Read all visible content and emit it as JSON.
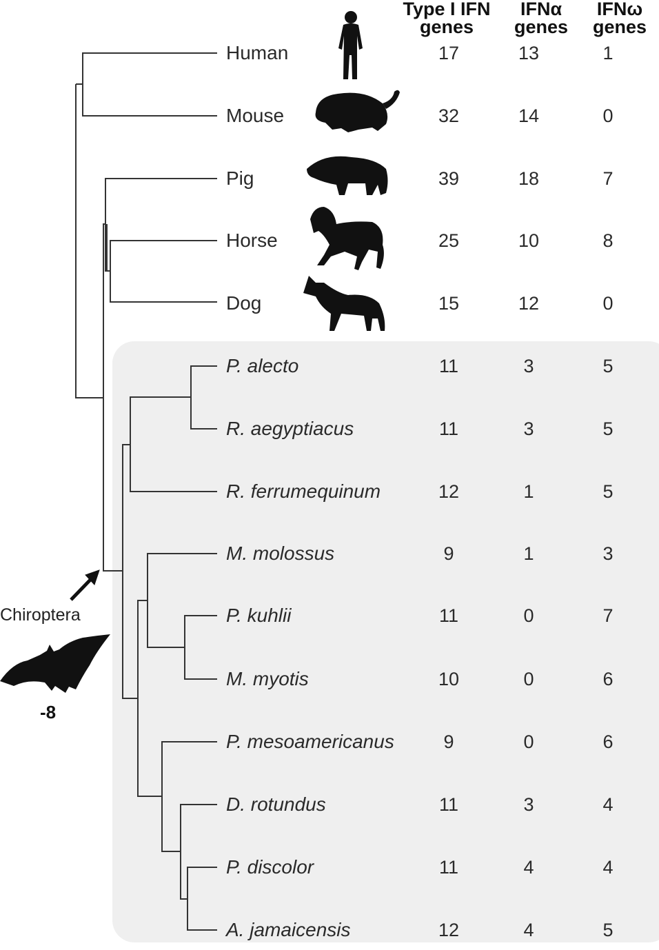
{
  "headers": {
    "col1": [
      "Type I IFN",
      "genes"
    ],
    "col2": [
      "IFNα",
      "genes"
    ],
    "col3": [
      "IFNω",
      "genes"
    ]
  },
  "taxa": [
    {
      "name": "Human",
      "italic": false,
      "type1": "17",
      "alpha": "13",
      "omega": "1",
      "icon": "human-silhouette-icon"
    },
    {
      "name": "Mouse",
      "italic": false,
      "type1": "32",
      "alpha": "14",
      "omega": "0",
      "icon": "mouse-silhouette-icon"
    },
    {
      "name": "Pig",
      "italic": false,
      "type1": "39",
      "alpha": "18",
      "omega": "7",
      "icon": "pig-silhouette-icon"
    },
    {
      "name": "Horse",
      "italic": false,
      "type1": "25",
      "alpha": "10",
      "omega": "8",
      "icon": "horse-silhouette-icon"
    },
    {
      "name": "Dog",
      "italic": false,
      "type1": "15",
      "alpha": "12",
      "omega": "0",
      "icon": "dog-silhouette-icon"
    },
    {
      "name": "P. alecto",
      "italic": true,
      "type1": "11",
      "alpha": "3",
      "omega": "5"
    },
    {
      "name": "R. aegyptiacus",
      "italic": true,
      "type1": "11",
      "alpha": "3",
      "omega": "5"
    },
    {
      "name": "R. ferrumequinum",
      "italic": true,
      "type1": "12",
      "alpha": "1",
      "omega": "5"
    },
    {
      "name": "M. molossus",
      "italic": true,
      "type1": "9",
      "alpha": "1",
      "omega": "3"
    },
    {
      "name": "P. kuhlii",
      "italic": true,
      "type1": "11",
      "alpha": "0",
      "omega": "7"
    },
    {
      "name": "M. myotis",
      "italic": true,
      "type1": "10",
      "alpha": "0",
      "omega": "6"
    },
    {
      "name": "P. mesoamericanus",
      "italic": true,
      "type1": "9",
      "alpha": "0",
      "omega": "6"
    },
    {
      "name": "D. rotundus",
      "italic": true,
      "type1": "11",
      "alpha": "3",
      "omega": "4"
    },
    {
      "name": "P. discolor",
      "italic": true,
      "type1": "11",
      "alpha": "4",
      "omega": "4"
    },
    {
      "name": "A. jamaicensis",
      "italic": true,
      "type1": "12",
      "alpha": "4",
      "omega": "5"
    }
  ],
  "clade": {
    "label": "Chiroptera",
    "gene_change": "-8",
    "icon": "bat-silhouette-icon",
    "highlight_color": "#efefef"
  },
  "colors": {
    "tree_line": "#333333",
    "silhouette": "#111111"
  }
}
